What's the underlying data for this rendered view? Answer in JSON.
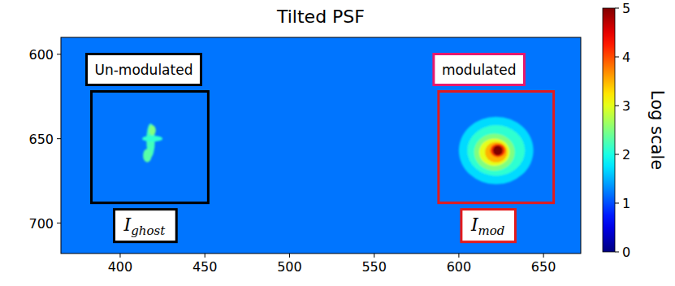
{
  "chart_data": {
    "type": "heatmap",
    "title": "Tilted PSF",
    "xlim": [
      365,
      672
    ],
    "ylim": [
      718,
      590
    ],
    "xticks": [
      400,
      450,
      500,
      550,
      600,
      650
    ],
    "yticks": [
      600,
      650,
      700
    ],
    "background": 1.2,
    "features": [
      {
        "x": 418,
        "y": 651,
        "rx": 2.5,
        "ry": 10,
        "value": 2.2
      },
      {
        "x": 419,
        "y": 650,
        "rx": 6,
        "ry": 1.8,
        "value": 2.1
      },
      {
        "x": 416,
        "y": 660,
        "rx": 2.5,
        "ry": 4,
        "value": 2.3
      },
      {
        "x": 419,
        "y": 645,
        "rx": 2,
        "ry": 3,
        "value": 2.5
      },
      {
        "x": 622,
        "y": 657,
        "rx": 22,
        "ry": 20,
        "value": 1.7
      },
      {
        "x": 622,
        "y": 657,
        "rx": 17,
        "ry": 15,
        "value": 2.1
      },
      {
        "x": 621,
        "y": 658,
        "rx": 12,
        "ry": 11,
        "value": 2.5
      },
      {
        "x": 621,
        "y": 658,
        "rx": 9,
        "ry": 8,
        "value": 3.0
      },
      {
        "x": 622,
        "y": 658,
        "rx": 6.5,
        "ry": 6,
        "value": 3.5
      },
      {
        "x": 623,
        "y": 657,
        "rx": 4.5,
        "ry": 4,
        "value": 4.1
      },
      {
        "x": 623,
        "y": 657,
        "rx": 3,
        "ry": 3,
        "value": 5
      }
    ],
    "regions": [
      {
        "label": "Un-modulated",
        "tag": {
          "symbol": "I",
          "subscript": "ghost"
        },
        "x0": 383,
        "x1": 452,
        "y0": 622,
        "y1": 688,
        "colors": [
          "#000000",
          "#000000",
          "#000000"
        ]
      },
      {
        "label": "modulated",
        "tag": {
          "symbol": "I",
          "subscript": "mod"
        },
        "x0": 588,
        "x1": 656,
        "y0": 622,
        "y1": 688,
        "colors": [
          "#e31a1c",
          "#e6196e",
          "#e31a1c"
        ]
      }
    ],
    "colorbar": {
      "range": [
        0,
        5
      ],
      "ticks": [
        0,
        1,
        2,
        3,
        4,
        5
      ],
      "label": "Log scale"
    }
  }
}
